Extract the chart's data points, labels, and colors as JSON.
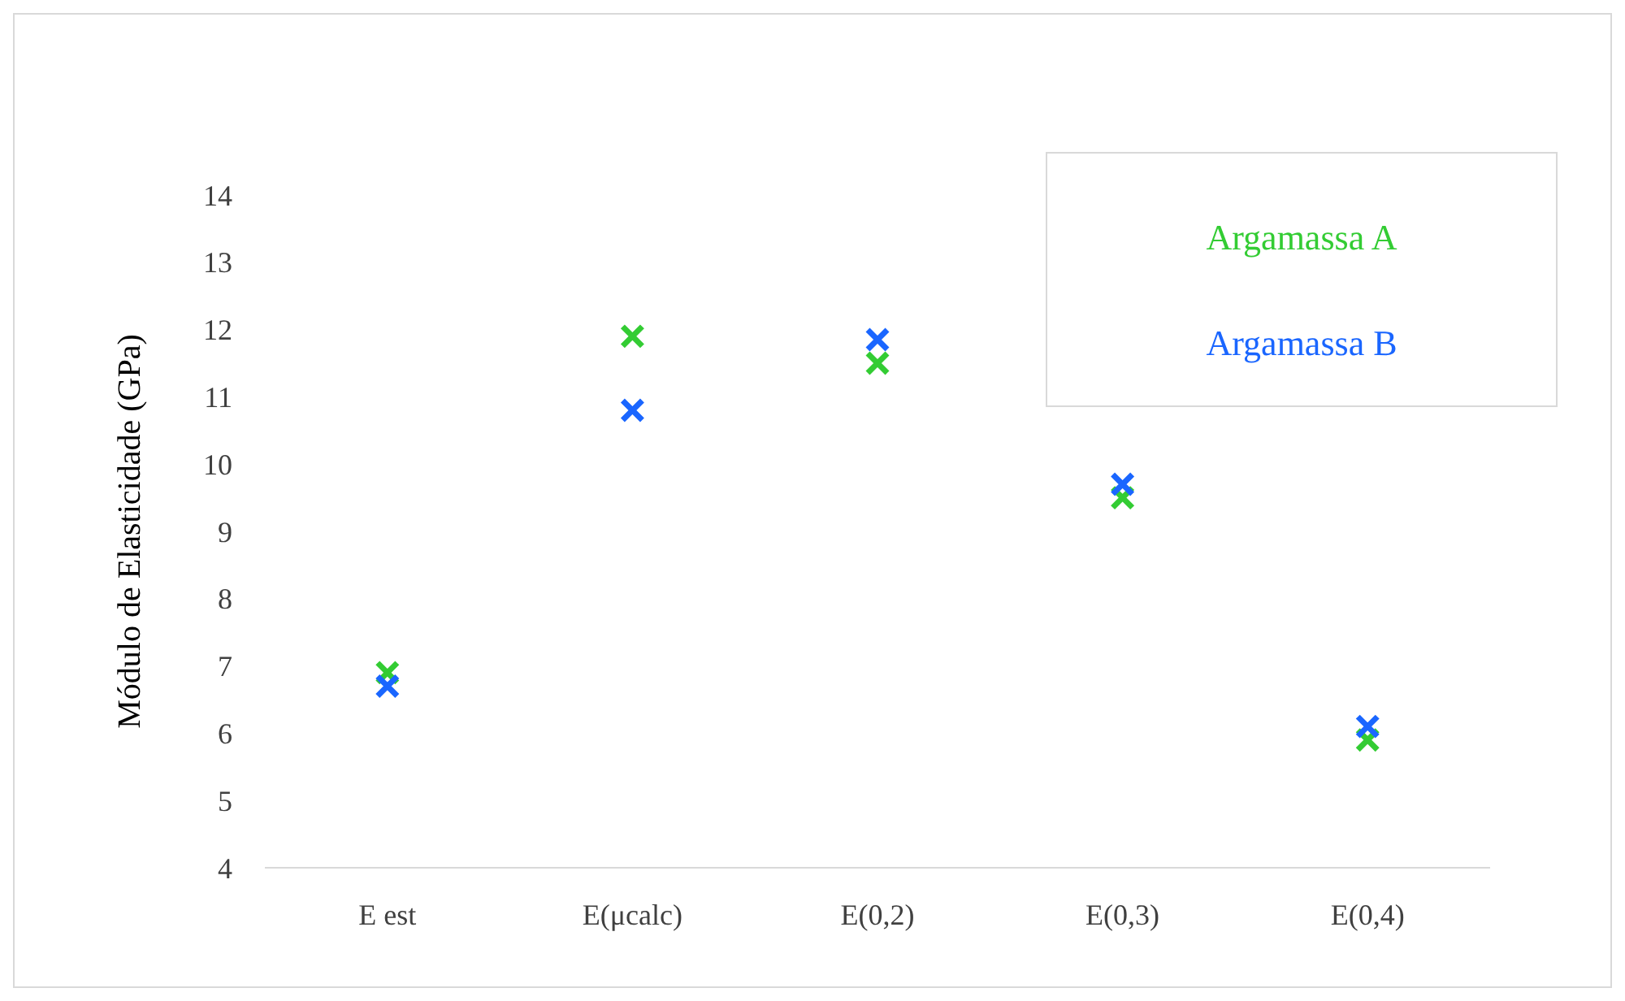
{
  "chart_data": {
    "type": "scatter",
    "ylabel": "Módulo de Elasticidade (GPa)",
    "categories": [
      "E est",
      "E(μcalc)",
      "E(0,2)",
      "E(0,3)",
      "E(0,4)"
    ],
    "series": [
      {
        "name": "Argamassa A",
        "color": "#33cc33",
        "values": [
          6.9,
          11.9,
          11.5,
          9.5,
          5.9
        ]
      },
      {
        "name": "Argamassa B",
        "color": "#1a66ff",
        "values": [
          6.7,
          10.8,
          11.85,
          9.7,
          6.1
        ]
      }
    ],
    "ylim": [
      4,
      14
    ],
    "yticks": [
      4,
      5,
      6,
      7,
      8,
      9,
      10,
      11,
      12,
      13,
      14
    ],
    "marker": "cross",
    "legend": "top right",
    "grid": false
  }
}
